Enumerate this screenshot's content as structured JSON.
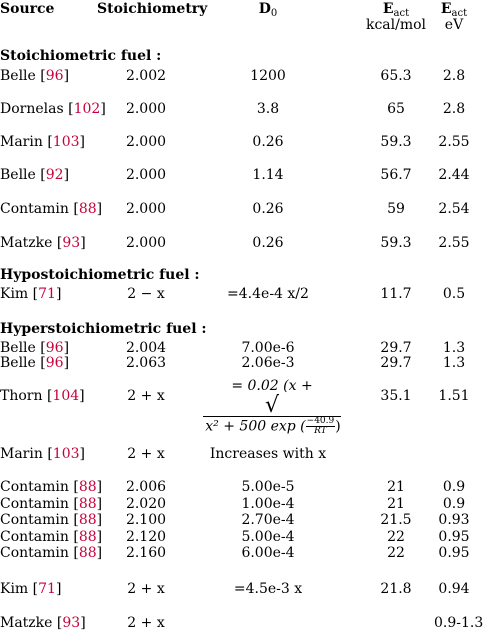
{
  "headers": {
    "source": "Source",
    "stoich": "Stoichiometry",
    "d0_main": "D",
    "d0_sub": "0",
    "e1_main": "E",
    "e1_sub": "act",
    "e1_unit": "kcal/mol",
    "e2_main": "E",
    "e2_sub": "act",
    "e2_unit": "eV"
  },
  "sections": {
    "stoichiometric": "Stoichiometric fuel :",
    "hypo": "Hypostoichiometric fuel :",
    "hyper": "Hyperstoichiometric fuel :"
  },
  "rows": [
    {
      "name": "Belle",
      "ref": "96",
      "stoich": "2.002",
      "d0": "1200",
      "ekcal": "65.3",
      "eev": "2.8"
    },
    {
      "name": "Dornelas",
      "ref": "102",
      "stoich": "2.000",
      "d0": "3.8",
      "ekcal": "65",
      "eev": "2.8"
    },
    {
      "name": "Marin",
      "ref": "103",
      "stoich": "2.000",
      "d0": "0.26",
      "ekcal": "59.3",
      "eev": "2.55"
    },
    {
      "name": "Belle",
      "ref": "92",
      "stoich": "2.000",
      "d0": "1.14",
      "ekcal": "56.7",
      "eev": "2.44"
    },
    {
      "name": "Contamin",
      "ref": "88",
      "stoich": "2.000",
      "d0": "0.26",
      "ekcal": "59",
      "eev": "2.54"
    },
    {
      "name": "Matzke",
      "ref": "93",
      "stoich": "2.000",
      "d0": "0.26",
      "ekcal": "59.3",
      "eev": "2.55"
    },
    {
      "name": "Kim",
      "ref": "71",
      "stoich": "2 − x",
      "d0": "=4.4e-4 x/2",
      "ekcal": "11.7",
      "eev": "0.5"
    },
    {
      "name": "Belle",
      "ref": "96",
      "stoich": "2.004",
      "d0": "7.00e-6",
      "ekcal": "29.7",
      "eev": "1.3"
    },
    {
      "name": "Belle",
      "ref": "96",
      "stoich": "2.063",
      "d0": "2.06e-3",
      "ekcal": "29.7",
      "eev": "1.3"
    },
    {
      "name": "Thorn",
      "ref": "104",
      "stoich": "2 + x",
      "d0": "",
      "ekcal": "35.1",
      "eev": "1.51"
    },
    {
      "name": "Marin",
      "ref": "103",
      "stoich": "2 + x",
      "d0": "Increases with x",
      "ekcal": "",
      "eev": ""
    },
    {
      "name": "Contamin",
      "ref": "88",
      "stoich": "2.006",
      "d0": "5.00e-5",
      "ekcal": "21",
      "eev": "0.9"
    },
    {
      "name": "Contamin",
      "ref": "88",
      "stoich": "2.020",
      "d0": "1.00e-4",
      "ekcal": "21",
      "eev": "0.9"
    },
    {
      "name": "Contamin",
      "ref": "88",
      "stoich": "2.100",
      "d0": "2.70e-4",
      "ekcal": "21.5",
      "eev": "0.93"
    },
    {
      "name": "Contamin",
      "ref": "88",
      "stoich": "2.120",
      "d0": "5.00e-4",
      "ekcal": "22",
      "eev": "0.95"
    },
    {
      "name": "Contamin",
      "ref": "88",
      "stoich": "2.160",
      "d0": "6.00e-4",
      "ekcal": "22",
      "eev": "0.95"
    },
    {
      "name": "Kim",
      "ref": "71",
      "stoich": "2 + x",
      "d0": "=4.5e-3 x",
      "ekcal": "21.8",
      "eev": "0.94"
    },
    {
      "name": "Matzke",
      "ref": "93",
      "stoich": "2 + x",
      "d0": "",
      "ekcal": "",
      "eev": "0.9-1.3"
    }
  ],
  "thorn_formula": {
    "line1": "= 0.02 (x +",
    "line2_inner": "x² + 500 exp (",
    "frac_num": "−40.9",
    "frac_den": "RT",
    "line2_close": ")"
  }
}
